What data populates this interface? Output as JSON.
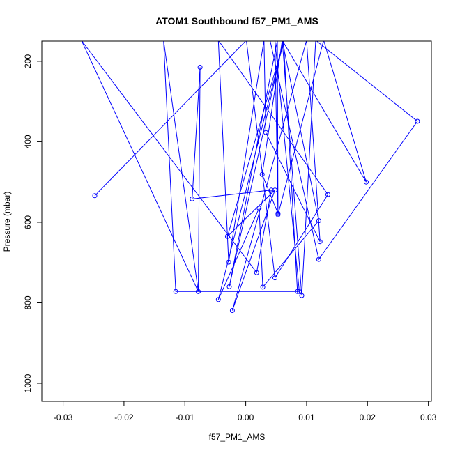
{
  "chart_data": {
    "type": "line",
    "title": "ATOM1 Southbound f57_PM1_AMS",
    "xlabel": "f57_PM1_AMS",
    "ylabel": "Pressure (mbar)",
    "xlim": [
      -0.0335,
      0.0305
    ],
    "ylim": [
      1045,
      150
    ],
    "y_reversed": true,
    "x_ticks": [
      -0.03,
      -0.02,
      -0.01,
      0.0,
      0.01,
      0.02,
      0.03
    ],
    "x_tick_labels": [
      "-0.03",
      "-0.02",
      "-0.01",
      "0.00",
      "0.01",
      "0.02",
      "0.03"
    ],
    "y_ticks": [
      200,
      400,
      600,
      800,
      1000
    ],
    "y_tick_labels": [
      "200",
      "400",
      "600",
      "800",
      "1000"
    ],
    "grid": false,
    "legend": "none",
    "color": "#0000ff",
    "series": [
      {
        "points": [
          [
            -0.0248,
            534
          ],
          [
            0.0001,
            148
          ],
          [
            0.0048,
            738
          ],
          [
            0.0135,
            531
          ],
          [
            -0.0045,
            148
          ],
          [
            -0.0028,
            699
          ],
          [
            0.003,
            148
          ],
          [
            0.0033,
            377
          ],
          [
            0.0122,
            648
          ],
          [
            0.01,
            148
          ],
          [
            -0.0022,
            819
          ],
          [
            0.0048,
            520
          ],
          [
            -0.003,
            635
          ],
          [
            0.0063,
            148
          ],
          [
            -0.0045,
            792
          ],
          [
            0.0022,
            565
          ],
          [
            0.0028,
            761
          ],
          [
            0.012,
            596
          ],
          [
            0.006,
            148
          ],
          [
            0.0027,
            481
          ],
          [
            0.0053,
            578
          ],
          [
            0.0052,
            148
          ],
          [
            -0.0027,
            760
          ],
          [
            0.0062,
            148
          ],
          [
            0.0085,
            772
          ],
          [
            -0.0078,
            772
          ],
          [
            -0.0075,
            215
          ],
          [
            -0.0088,
            542
          ],
          [
            0.0042,
            520
          ],
          [
            0.0018,
            725
          ],
          [
            -0.027,
            148
          ],
          [
            -0.0078,
            772
          ],
          [
            -0.0135,
            148
          ],
          [
            -0.0115,
            772
          ],
          [
            0.0088,
            772
          ],
          [
            0.0048,
            148
          ],
          [
            0.0053,
            581
          ],
          [
            0.0128,
            148
          ],
          [
            0.0198,
            500
          ],
          [
            0.006,
            148
          ],
          [
            0.0092,
            782
          ],
          [
            0.0115,
            148
          ],
          [
            0.0282,
            349
          ],
          [
            0.012,
            692
          ],
          [
            0.004,
            148
          ],
          [
            0.002,
            148
          ]
        ]
      }
    ]
  }
}
